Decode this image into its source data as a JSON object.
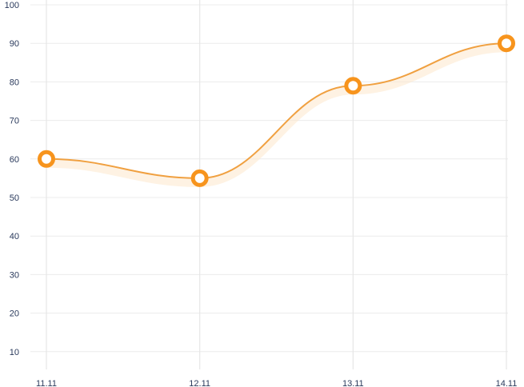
{
  "chart_data": {
    "type": "line",
    "categories": [
      "11.11",
      "12.11",
      "13.11",
      "14.11"
    ],
    "series": [
      {
        "values": [
          60,
          55,
          79,
          90
        ]
      }
    ],
    "y_ticks": [
      10,
      20,
      30,
      40,
      50,
      60,
      70,
      80,
      90,
      100
    ],
    "ylim": [
      0,
      100
    ],
    "smooth": true,
    "grid": true,
    "title": "",
    "xlabel": "",
    "ylabel": "",
    "colors": {
      "line": "#f0a040",
      "marker": "#f7941d",
      "glow": "#fde8cc",
      "grid": "#ececec"
    }
  }
}
